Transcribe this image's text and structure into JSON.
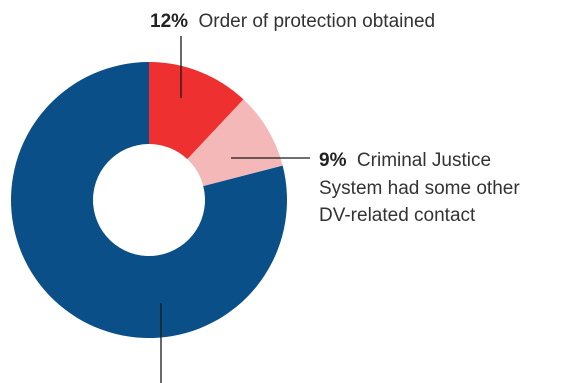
{
  "chart_data": {
    "type": "pie",
    "title": "",
    "donut": true,
    "legend": "none",
    "slices": [
      {
        "value": 12,
        "pct_label": "12%",
        "text_lines": [
          "Order of protection obtained"
        ],
        "color": "#ee3030"
      },
      {
        "value": 9,
        "pct_label": "9%",
        "text_lines": [
          "Criminal Justice",
          "System had some other",
          "DV-related contact"
        ],
        "color": "#f5b8b8"
      },
      {
        "value": 79,
        "pct_label": "",
        "text_lines": [],
        "color": "#0a4f87"
      }
    ]
  }
}
